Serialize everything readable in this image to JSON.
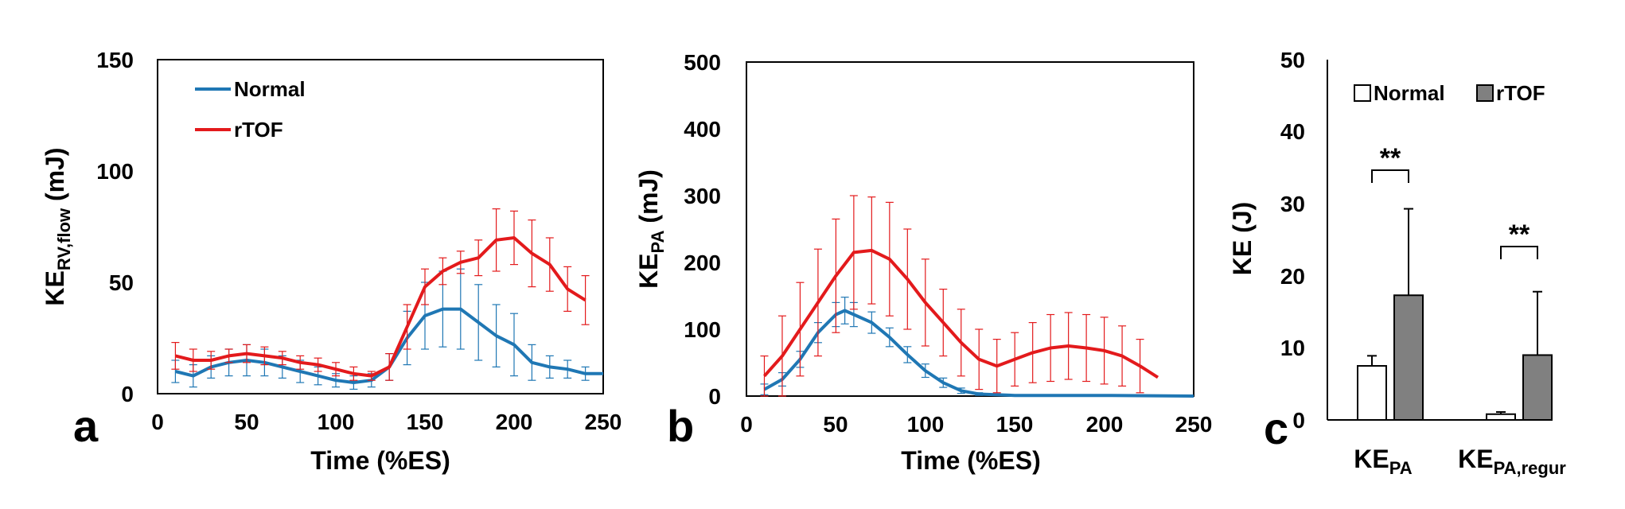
{
  "chart_data": [
    {
      "type": "line",
      "panel_label": "a",
      "xlabel": "Time (%ES)",
      "ylabel_main": "KE",
      "ylabel_sub": "RV,flow",
      "ylabel_unit": " (mJ)",
      "xlim": [
        0,
        250
      ],
      "ylim": [
        0,
        150
      ],
      "xticks": [
        0,
        50,
        100,
        150,
        200,
        250
      ],
      "yticks": [
        0,
        50,
        100,
        150
      ],
      "legend": [
        "Normal",
        "rTOF"
      ],
      "legend_position": "top-left",
      "series": [
        {
          "name": "Normal",
          "color": "#1f77b4",
          "x": [
            10,
            20,
            30,
            40,
            50,
            60,
            70,
            80,
            90,
            100,
            110,
            120,
            130,
            140,
            150,
            160,
            170,
            180,
            190,
            200,
            210,
            220,
            230,
            240,
            250
          ],
          "y": [
            10,
            8,
            12,
            14,
            15,
            14,
            12,
            10,
            8,
            6,
            5,
            6,
            12,
            25,
            35,
            38,
            38,
            32,
            26,
            22,
            14,
            12,
            11,
            9,
            9
          ],
          "err": [
            5,
            5,
            5,
            6,
            7,
            6,
            5,
            5,
            4,
            3,
            3,
            3,
            6,
            12,
            15,
            17,
            18,
            17,
            14,
            14,
            8,
            5,
            4,
            3,
            0
          ]
        },
        {
          "name": "rTOF",
          "color": "#e31a1c",
          "x": [
            10,
            20,
            30,
            40,
            50,
            60,
            70,
            80,
            90,
            100,
            110,
            120,
            130,
            140,
            150,
            160,
            170,
            180,
            190,
            200,
            210,
            220,
            230,
            240
          ],
          "y": [
            17,
            15,
            15,
            17,
            18,
            17,
            16,
            14,
            13,
            11,
            9,
            8,
            12,
            30,
            48,
            55,
            59,
            61,
            69,
            70,
            63,
            58,
            47,
            42
          ],
          "err": [
            6,
            5,
            4,
            3,
            4,
            4,
            3,
            3,
            3,
            3,
            3,
            2,
            6,
            10,
            8,
            6,
            5,
            8,
            14,
            12,
            15,
            12,
            10,
            11
          ]
        }
      ]
    },
    {
      "type": "line",
      "panel_label": "b",
      "xlabel": "Time (%ES)",
      "ylabel_main": "KE",
      "ylabel_sub": "PA",
      "ylabel_unit": " (mJ)",
      "xlim": [
        0,
        250
      ],
      "ylim": [
        0,
        500
      ],
      "xticks": [
        0,
        50,
        100,
        150,
        200,
        250
      ],
      "yticks": [
        0,
        100,
        200,
        300,
        400,
        500
      ],
      "series": [
        {
          "name": "Normal",
          "color": "#1f77b4",
          "x": [
            10,
            20,
            30,
            40,
            50,
            55,
            60,
            70,
            80,
            90,
            100,
            110,
            120,
            130,
            150,
            200,
            250
          ],
          "y": [
            10,
            25,
            55,
            95,
            122,
            128,
            122,
            110,
            88,
            62,
            38,
            20,
            8,
            3,
            1,
            1,
            0
          ],
          "err": [
            8,
            10,
            12,
            15,
            18,
            20,
            18,
            16,
            14,
            12,
            10,
            7,
            4,
            2,
            1,
            1,
            0
          ]
        },
        {
          "name": "rTOF",
          "color": "#e31a1c",
          "x": [
            10,
            20,
            30,
            40,
            50,
            60,
            70,
            80,
            90,
            100,
            110,
            120,
            130,
            140,
            150,
            160,
            170,
            180,
            190,
            200,
            210,
            220,
            230
          ],
          "y": [
            30,
            60,
            100,
            140,
            180,
            215,
            218,
            205,
            175,
            140,
            110,
            80,
            55,
            45,
            55,
            65,
            72,
            75,
            72,
            68,
            60,
            45,
            28
          ],
          "err": [
            30,
            60,
            70,
            80,
            85,
            85,
            80,
            85,
            75,
            65,
            50,
            50,
            45,
            40,
            40,
            45,
            50,
            50,
            50,
            50,
            45,
            40,
            0
          ]
        }
      ]
    },
    {
      "type": "bar",
      "panel_label": "c",
      "ylabel": "KE (J)",
      "ylim": [
        0,
        50
      ],
      "yticks": [
        0,
        10,
        20,
        30,
        40,
        50
      ],
      "categories_main": [
        "KE",
        "KE"
      ],
      "categories_sub": [
        "PA",
        "PA,regur"
      ],
      "legend": [
        "Normal",
        "rTOF"
      ],
      "legend_position": "top",
      "significance": [
        "**",
        "**"
      ],
      "series": [
        {
          "name": "Normal",
          "color": "#ffffff",
          "values": [
            7.5,
            0.8
          ],
          "err": [
            1.4,
            0.3
          ]
        },
        {
          "name": "rTOF",
          "color": "#808080",
          "values": [
            17.3,
            9.0
          ],
          "err": [
            12.0,
            8.8
          ]
        }
      ]
    }
  ]
}
